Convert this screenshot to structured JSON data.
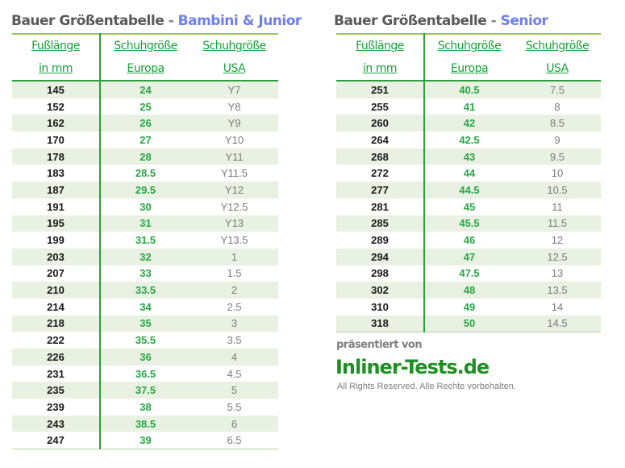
{
  "junior": {
    "title_brand": "Bauer Größentabelle",
    "title_sep": "-",
    "title_accent": "Bambini & Junior",
    "headers": [
      [
        "Fußlänge",
        "in mm"
      ],
      [
        "Schuhgröße",
        "Europa"
      ],
      [
        "Schuhgröße",
        "USA"
      ]
    ],
    "rows": [
      [
        "145",
        "24",
        "Y7"
      ],
      [
        "152",
        "25",
        "Y8"
      ],
      [
        "162",
        "26",
        "Y9"
      ],
      [
        "170",
        "27",
        "Y10"
      ],
      [
        "178",
        "28",
        "Y11"
      ],
      [
        "183",
        "28.5",
        "Y11.5"
      ],
      [
        "187",
        "29.5",
        "Y12"
      ],
      [
        "191",
        "30",
        "Y12.5"
      ],
      [
        "195",
        "31",
        "Y13"
      ],
      [
        "199",
        "31.5",
        "Y13.5"
      ],
      [
        "203",
        "32",
        "1"
      ],
      [
        "207",
        "33",
        "1.5"
      ],
      [
        "210",
        "33.5",
        "2"
      ],
      [
        "214",
        "34",
        "2.5"
      ],
      [
        "218",
        "35",
        "3"
      ],
      [
        "222",
        "35.5",
        "3.5"
      ],
      [
        "226",
        "36",
        "4"
      ],
      [
        "231",
        "36.5",
        "4.5"
      ],
      [
        "235",
        "37.5",
        "5"
      ],
      [
        "239",
        "38",
        "5.5"
      ],
      [
        "243",
        "38.5",
        "6"
      ],
      [
        "247",
        "39",
        "6.5"
      ]
    ]
  },
  "senior": {
    "title_brand": "Bauer Größentabelle",
    "title_sep": "-",
    "title_accent": "Senior",
    "headers": [
      [
        "Fußlänge",
        "in mm"
      ],
      [
        "Schuhgröße",
        "Europa"
      ],
      [
        "Schuhgröße",
        "USA"
      ]
    ],
    "rows": [
      [
        "251",
        "40.5",
        "7.5"
      ],
      [
        "255",
        "41",
        "8"
      ],
      [
        "260",
        "42",
        "8.5"
      ],
      [
        "264",
        "42.5",
        "9"
      ],
      [
        "268",
        "43",
        "9.5"
      ],
      [
        "272",
        "44",
        "10"
      ],
      [
        "277",
        "44.5",
        "10.5"
      ],
      [
        "281",
        "45",
        "11"
      ],
      [
        "285",
        "45.5",
        "11.5"
      ],
      [
        "289",
        "46",
        "12"
      ],
      [
        "294",
        "47",
        "12.5"
      ],
      [
        "298",
        "47.5",
        "13"
      ],
      [
        "302",
        "48",
        "13.5"
      ],
      [
        "310",
        "49",
        "14"
      ],
      [
        "318",
        "50",
        "14.5"
      ]
    ]
  },
  "footer": {
    "presented": "präsentiert von",
    "brand": "Inliner-Tests.de",
    "rights": "All Rights Reserved. Alle Rechte vorbehalten."
  },
  "colors": {
    "header_green": "#17a03a",
    "europe_green": "#28a745",
    "accent_blue": "#6d7ff0",
    "row_stripe": "#e9f1e2"
  }
}
